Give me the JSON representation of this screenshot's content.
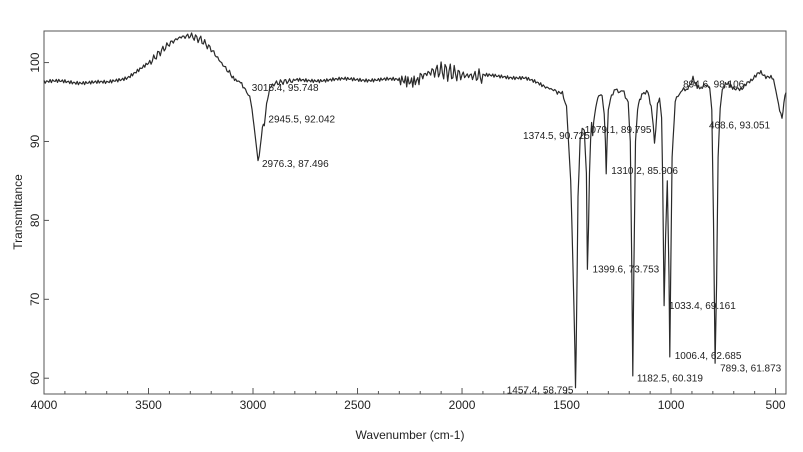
{
  "chart_data": {
    "type": "line",
    "title": "",
    "xlabel": "Wavenumber (cm-1)",
    "ylabel": "Transmittance",
    "xlim": [
      4000,
      450
    ],
    "ylim": [
      58,
      104
    ],
    "x_reversed": true,
    "grid": false,
    "legend": "none",
    "xticks": [
      4000,
      3500,
      3000,
      2500,
      2000,
      1500,
      1000,
      500
    ],
    "yticks": [
      60,
      70,
      80,
      90,
      100
    ],
    "line_color": "#2a2a2a",
    "series": [
      {
        "x": [
          4000,
          3900,
          3800,
          3700,
          3600,
          3500,
          3450,
          3400,
          3350,
          3300,
          3250,
          3200,
          3150,
          3100,
          3060,
          3030,
          3016,
          3005,
          2990,
          2976,
          2965,
          2955,
          2946,
          2935,
          2920,
          2900,
          2850,
          2800,
          2700,
          2600,
          2500,
          2400,
          2300,
          2200,
          2150,
          2100,
          2050,
          2000,
          1950,
          1900,
          1800,
          1700,
          1600,
          1550,
          1520,
          1500,
          1480,
          1470,
          1460,
          1457,
          1454,
          1445,
          1435,
          1425,
          1415,
          1405,
          1400,
          1395,
          1390,
          1385,
          1380,
          1375,
          1370,
          1360,
          1345,
          1330,
          1320,
          1314,
          1310,
          1306,
          1300,
          1285,
          1265,
          1245,
          1225,
          1205,
          1195,
          1188,
          1183,
          1178,
          1170,
          1160,
          1145,
          1130,
          1110,
          1095,
          1085,
          1079,
          1073,
          1065,
          1055,
          1045,
          1040,
          1033,
          1026,
          1018,
          1010,
          1006,
          1002,
          995,
          980,
          960,
          940,
          920,
          905,
          895,
          885,
          870,
          850,
          830,
          815,
          805,
          797,
          789,
          782,
          775,
          765,
          755,
          745,
          735,
          720,
          705,
          690,
          660,
          630,
          600,
          570,
          540,
          510,
          480,
          469,
          460,
          450
        ],
        "y": [
          97.5,
          97.6,
          97.5,
          97.4,
          98.2,
          99.8,
          101.2,
          102.4,
          103.2,
          103.4,
          102.9,
          101.7,
          99.9,
          98.3,
          97.4,
          96.5,
          95.7,
          94.1,
          90.8,
          87.5,
          89.4,
          91.7,
          92.0,
          94.8,
          96.6,
          97.3,
          97.6,
          97.7,
          97.8,
          97.8,
          97.9,
          97.8,
          97.8,
          98.2,
          98.8,
          99.0,
          98.7,
          98.4,
          98.3,
          98.3,
          98.3,
          98.0,
          96.9,
          96.4,
          96.0,
          94.5,
          85.0,
          75.0,
          63.5,
          58.8,
          63.0,
          83.0,
          90.0,
          91.6,
          91.4,
          86.0,
          73.8,
          79.0,
          86.0,
          90.2,
          92.2,
          90.7,
          92.5,
          94.5,
          95.9,
          95.8,
          93.5,
          90.0,
          85.9,
          90.0,
          94.0,
          96.0,
          96.5,
          96.4,
          96.2,
          95.0,
          90.0,
          75.0,
          60.3,
          73.0,
          90.0,
          94.3,
          95.6,
          96.3,
          96.1,
          94.5,
          92.0,
          89.8,
          91.5,
          94.8,
          95.5,
          93.0,
          85.0,
          69.2,
          78.0,
          85.0,
          73.0,
          62.7,
          72.0,
          88.0,
          95.0,
          96.2,
          96.5,
          96.8,
          97.3,
          98.1,
          97.4,
          96.9,
          96.9,
          97.1,
          96.8,
          94.0,
          80.0,
          61.9,
          72.0,
          88.0,
          94.2,
          96.5,
          97.0,
          97.4,
          97.2,
          96.8,
          96.6,
          96.8,
          97.4,
          98.3,
          98.7,
          98.2,
          97.9,
          94.0,
          93.1,
          95.0,
          96.2
        ]
      }
    ],
    "annotations": [
      {
        "text": "3015.4, 95.748",
        "x": 3015.4,
        "y": 95.748
      },
      {
        "text": "2945.5, 92.042",
        "x": 2945.5,
        "y": 92.042
      },
      {
        "text": "2976.3, 87.496",
        "x": 2976.3,
        "y": 87.496
      },
      {
        "text": "1374.5, 90.725",
        "x": 1374.5,
        "y": 90.725
      },
      {
        "text": "1310.2, 85.906",
        "x": 1310.2,
        "y": 85.906
      },
      {
        "text": "1399.6, 73.753",
        "x": 1399.6,
        "y": 73.753
      },
      {
        "text": "1457.4, 58.795",
        "x": 1457.4,
        "y": 58.795
      },
      {
        "text": "1182.5, 60.319",
        "x": 1182.5,
        "y": 60.319
      },
      {
        "text": "1079.1, 89.795",
        "x": 1079.1,
        "y": 89.795
      },
      {
        "text": "1033.4, 69.161",
        "x": 1033.4,
        "y": 69.161
      },
      {
        "text": "1006.4, 62.685",
        "x": 1006.4,
        "y": 62.685
      },
      {
        "text": "894.6, 98.106",
        "x": 894.6,
        "y": 98.106
      },
      {
        "text": "468.6, 93.051",
        "x": 468.6,
        "y": 93.051
      },
      {
        "text": "789.3, 61.873",
        "x": 789.3,
        "y": 61.873
      }
    ]
  }
}
